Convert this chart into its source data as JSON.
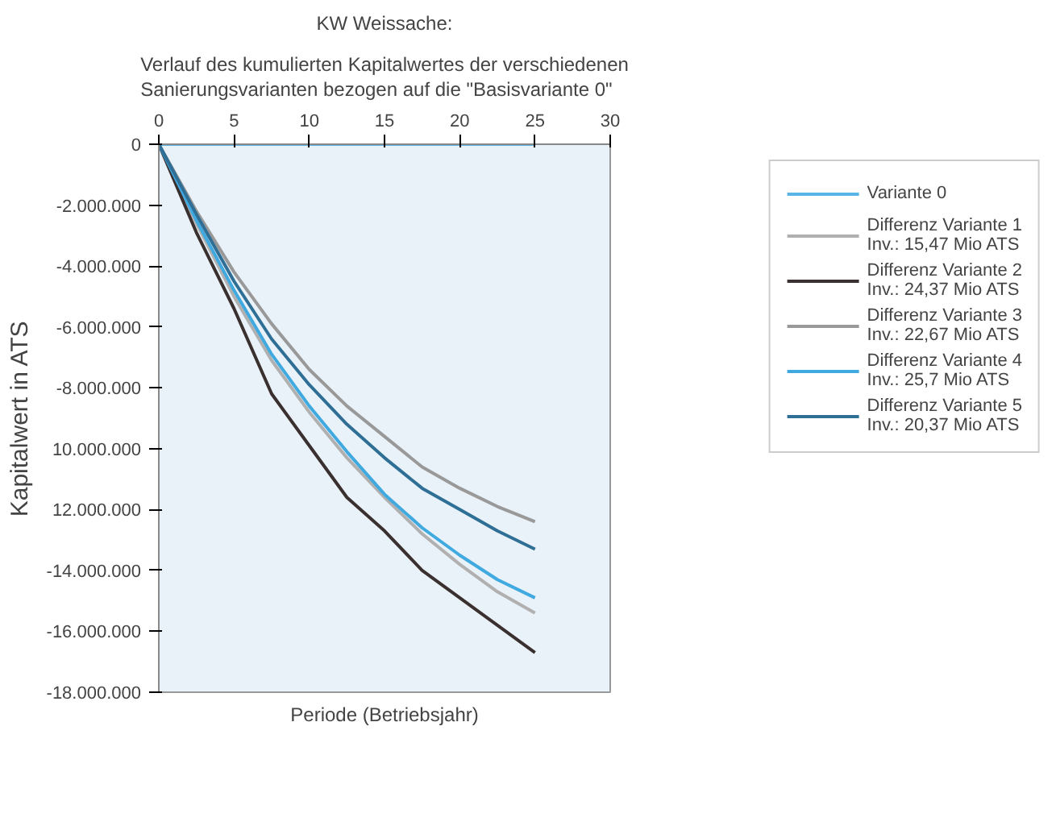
{
  "chart_data": {
    "type": "line",
    "title": "KW Weissache:",
    "subtitle": "Verlauf des kumulierten Kapitalwertes der verschiedenen\nSanierungsvarianten bezogen auf die \"Basisvariante 0\"",
    "xlabel": "Periode (Betriebsjahr)",
    "ylabel": "Kapitalwert in ATS",
    "x": [
      0,
      2.5,
      5,
      7.5,
      10,
      12.5,
      15,
      17.5,
      20,
      22.5,
      25
    ],
    "xlim": [
      0,
      30
    ],
    "xticks": [
      0,
      5,
      10,
      15,
      20,
      25,
      30
    ],
    "ylim": [
      -18000000,
      0
    ],
    "yticks": [
      0,
      {
        "value": -2000000,
        "label": "-2.000.000"
      },
      {
        "value": -4000000,
        "label": "-4.000.000"
      },
      {
        "value": -6000000,
        "label": "-6.000.000"
      },
      {
        "value": -8000000,
        "label": "-8.000.000"
      },
      {
        "value": -10000000,
        "label": "10.000.000"
      },
      {
        "value": -12000000,
        "label": "12.000.000"
      },
      {
        "value": -14000000,
        "label": "-14.000.000"
      },
      {
        "value": -16000000,
        "label": "-16.000.000"
      },
      {
        "value": -18000000,
        "label": "-18.000.000"
      }
    ],
    "grid": false,
    "legend": "right",
    "marker": "none",
    "line_style": "solid",
    "series": [
      {
        "name": "Variante 0",
        "color": "#5ab4e5",
        "values": [
          0,
          0,
          0,
          0,
          0,
          0,
          0,
          0,
          0,
          0,
          0
        ]
      },
      {
        "name": "Differenz Variante 1\nInv.: 15,47 Mio ATS",
        "color": "#b0b0b0",
        "values": [
          0,
          -2600000,
          -5000000,
          -7100000,
          -8800000,
          -10300000,
          -11600000,
          -12800000,
          -13800000,
          -14700000,
          -15400000
        ]
      },
      {
        "name": "Differenz Variante 2\nInv.: 24,37 Mio ATS",
        "color": "#3a3030",
        "values": [
          0,
          -2900000,
          -5400000,
          -8200000,
          -9900000,
          -11600000,
          -12700000,
          -14000000,
          -14900000,
          -15800000,
          -16700000
        ]
      },
      {
        "name": "Differenz Variante 3\nInv.: 22,67 Mio ATS",
        "color": "#999999",
        "values": [
          0,
          -2200000,
          -4200000,
          -5900000,
          -7400000,
          -8600000,
          -9600000,
          -10600000,
          -11300000,
          -11900000,
          -12400000
        ]
      },
      {
        "name": "Differenz Variante 4\nInv.: 25,7 Mio ATS",
        "color": "#3fa9e0",
        "values": [
          0,
          -2500000,
          -4800000,
          -6900000,
          -8600000,
          -10100000,
          -11500000,
          -12600000,
          -13500000,
          -14300000,
          -14900000
        ]
      },
      {
        "name": "Differenz Variante 5\nInv.: 20,37 Mio ATS",
        "color": "#2f6f95",
        "values": [
          0,
          -2300000,
          -4500000,
          -6400000,
          -7900000,
          -9200000,
          -10300000,
          -11300000,
          -12000000,
          -12700000,
          -13300000
        ]
      }
    ]
  }
}
